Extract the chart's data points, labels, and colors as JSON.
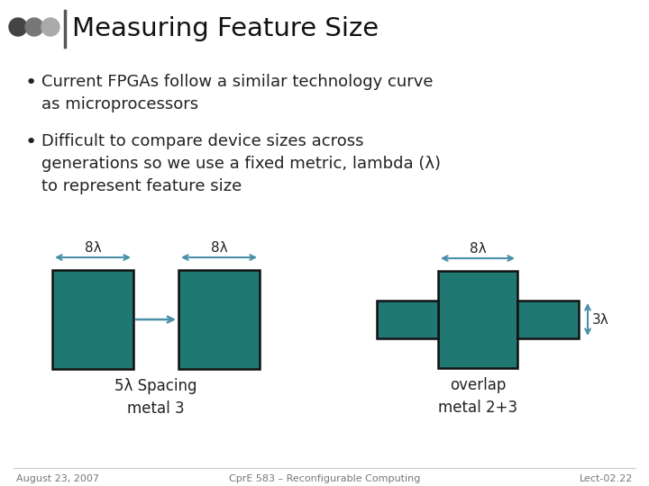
{
  "title": "Measuring Feature Size",
  "bullet1": "Current FPGAs follow a similar technology curve\nas microprocessors",
  "bullet2": "Difficult to compare device sizes across\ngenerations so we use a fixed metric, lambda (λ)\nto represent feature size",
  "teal_color": "#1f7872",
  "arrow_color": "#4a8fa8",
  "bg_color": "#ffffff",
  "text_color": "#222222",
  "title_color": "#111111",
  "footer_left": "August 23, 2007",
  "footer_center": "CprE 583 – Reconfigurable Computing",
  "footer_right": "Lect-02.22",
  "label_8lambda_1": "8λ",
  "label_8lambda_2": "8λ",
  "label_8lambda_3": "8λ",
  "label_5lambda": "5λ Spacing\nmetal 3",
  "label_3lambda": "3λ",
  "label_overlap": "overlap\nmetal 2+3",
  "header_line_color": "#555555",
  "dot_colors": [
    "#444444",
    "#777777",
    "#aaaaaa"
  ]
}
